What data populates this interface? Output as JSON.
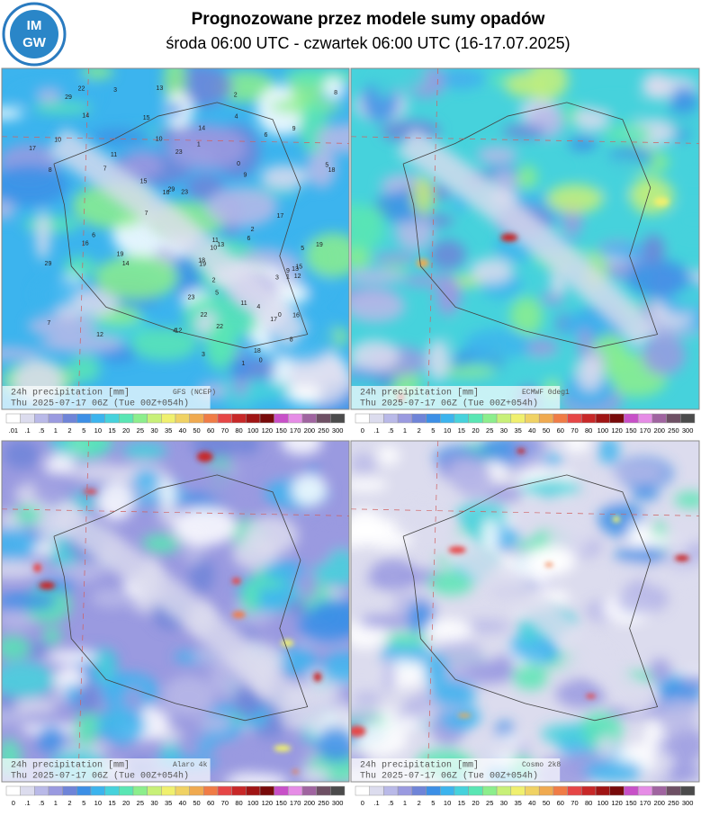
{
  "header": {
    "title": "Prognozowane przez modele sumy opadów",
    "subtitle": "środa 06:00 UTC - czwartek 06:00 UTC (16-17.07.2025)",
    "logo": [
      "IM",
      "GW"
    ]
  },
  "palette": [
    "#ffffff",
    "#dcdcee",
    "#b9b9e8",
    "#9a9ae0",
    "#6f84d8",
    "#3c8fe6",
    "#3cb4ee",
    "#46d2dc",
    "#5ae6b4",
    "#8cee8c",
    "#c8f078",
    "#f0f06e",
    "#f0d264",
    "#f0aa50",
    "#f07c46",
    "#e64646",
    "#c82828",
    "#a01414",
    "#780a0a",
    "#c850c8",
    "#e68ce6",
    "#a064a0",
    "#6e5064",
    "#4b4b4b"
  ],
  "panels": [
    {
      "variable": "24h precipitation   [mm]",
      "model": "GFS (NCEP)",
      "time": "Thu 2025-07-17 06Z (Tue 00Z+054h)",
      "station_values": [
        "12",
        "0",
        "9",
        "17",
        "22",
        "16",
        "23",
        "11",
        "19",
        "14",
        "15",
        "29",
        "7",
        "10",
        "4",
        "5",
        "8",
        "6",
        "3",
        "2",
        "1",
        "13",
        "18"
      ]
    },
    {
      "variable": "24h precipitation   [mm]",
      "model": "ECMWF 0deg1",
      "time": "Thu 2025-07-17 06Z (Tue 00Z+054h)"
    },
    {
      "variable": "24h precipitation   [mm]",
      "model": "Alaro 4k",
      "time": "Thu 2025-07-17 06Z (Tue 00Z+054h)"
    },
    {
      "variable": "24h precipitation   [mm]",
      "model": "Cosmo 2k8",
      "time": "Thu 2025-07-17 06Z (Tue 00Z+054h)"
    }
  ],
  "colorbars": [
    [
      ".01",
      ".1",
      ".5",
      "1",
      "2",
      "5",
      "10",
      "15",
      "20",
      "25",
      "30",
      "35",
      "40",
      "50",
      "60",
      "70",
      "80",
      "100",
      "120",
      "150",
      "170",
      "200",
      "250",
      "300"
    ],
    [
      "0",
      ".1",
      ".5",
      "1",
      "2",
      "5",
      "10",
      "15",
      "20",
      "25",
      "30",
      "35",
      "40",
      "50",
      "60",
      "70",
      "80",
      "100",
      "120",
      "150",
      "170",
      "200",
      "250",
      "300"
    ],
    [
      "0",
      ".1",
      ".5",
      "1",
      "2",
      "5",
      "10",
      "15",
      "20",
      "25",
      "30",
      "35",
      "40",
      "50",
      "60",
      "70",
      "80",
      "100",
      "120",
      "150",
      "170",
      "200",
      "250",
      "300"
    ],
    [
      "0",
      ".1",
      ".5",
      "1",
      "2",
      "5",
      "10",
      "15",
      "20",
      "25",
      "30",
      "35",
      "40",
      "50",
      "60",
      "70",
      "80",
      "100",
      "120",
      "150",
      "170",
      "200",
      "250",
      "300"
    ]
  ]
}
